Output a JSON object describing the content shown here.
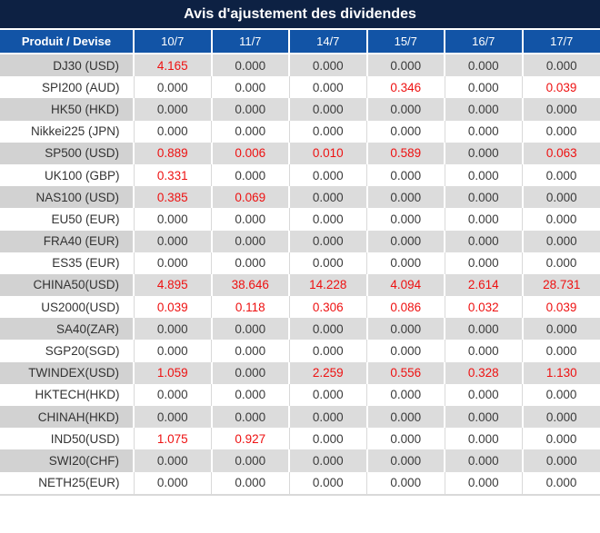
{
  "title": "Avis d'ajustement des dividendes",
  "table": {
    "product_header": "Produit / Devise",
    "date_headers": [
      "10/7",
      "11/7",
      "14/7",
      "15/7",
      "16/7",
      "17/7"
    ],
    "rows": [
      {
        "product": "DJ30 (USD)",
        "values": [
          "4.165",
          "0.000",
          "0.000",
          "0.000",
          "0.000",
          "0.000"
        ]
      },
      {
        "product": "SPI200 (AUD)",
        "values": [
          "0.000",
          "0.000",
          "0.000",
          "0.346",
          "0.000",
          "0.039"
        ]
      },
      {
        "product": "HK50 (HKD)",
        "values": [
          "0.000",
          "0.000",
          "0.000",
          "0.000",
          "0.000",
          "0.000"
        ]
      },
      {
        "product": "Nikkei225 (JPN)",
        "values": [
          "0.000",
          "0.000",
          "0.000",
          "0.000",
          "0.000",
          "0.000"
        ]
      },
      {
        "product": "SP500 (USD)",
        "values": [
          "0.889",
          "0.006",
          "0.010",
          "0.589",
          "0.000",
          "0.063"
        ]
      },
      {
        "product": "UK100 (GBP)",
        "values": [
          "0.331",
          "0.000",
          "0.000",
          "0.000",
          "0.000",
          "0.000"
        ]
      },
      {
        "product": "NAS100 (USD)",
        "values": [
          "0.385",
          "0.069",
          "0.000",
          "0.000",
          "0.000",
          "0.000"
        ]
      },
      {
        "product": "EU50 (EUR)",
        "values": [
          "0.000",
          "0.000",
          "0.000",
          "0.000",
          "0.000",
          "0.000"
        ]
      },
      {
        "product": "FRA40 (EUR)",
        "values": [
          "0.000",
          "0.000",
          "0.000",
          "0.000",
          "0.000",
          "0.000"
        ]
      },
      {
        "product": "ES35 (EUR)",
        "values": [
          "0.000",
          "0.000",
          "0.000",
          "0.000",
          "0.000",
          "0.000"
        ]
      },
      {
        "product": "CHINA50(USD)",
        "values": [
          "4.895",
          "38.646",
          "14.228",
          "4.094",
          "2.614",
          "28.731"
        ]
      },
      {
        "product": "US2000(USD)",
        "values": [
          "0.039",
          "0.118",
          "0.306",
          "0.086",
          "0.032",
          "0.039"
        ]
      },
      {
        "product": "SA40(ZAR)",
        "values": [
          "0.000",
          "0.000",
          "0.000",
          "0.000",
          "0.000",
          "0.000"
        ]
      },
      {
        "product": "SGP20(SGD)",
        "values": [
          "0.000",
          "0.000",
          "0.000",
          "0.000",
          "0.000",
          "0.000"
        ]
      },
      {
        "product": "TWINDEX(USD)",
        "values": [
          "1.059",
          "0.000",
          "2.259",
          "0.556",
          "0.328",
          "1.130"
        ]
      },
      {
        "product": "HKTECH(HKD)",
        "values": [
          "0.000",
          "0.000",
          "0.000",
          "0.000",
          "0.000",
          "0.000"
        ]
      },
      {
        "product": "CHINAH(HKD)",
        "values": [
          "0.000",
          "0.000",
          "0.000",
          "0.000",
          "0.000",
          "0.000"
        ]
      },
      {
        "product": "IND50(USD)",
        "values": [
          "1.075",
          "0.927",
          "0.000",
          "0.000",
          "0.000",
          "0.000"
        ]
      },
      {
        "product": "SWI20(CHF)",
        "values": [
          "0.000",
          "0.000",
          "0.000",
          "0.000",
          "0.000",
          "0.000"
        ]
      },
      {
        "product": "NETH25(EUR)",
        "values": [
          "0.000",
          "0.000",
          "0.000",
          "0.000",
          "0.000",
          "0.000"
        ]
      }
    ]
  },
  "colors": {
    "title_bg": "#0d2143",
    "header_bg": "#1254a6",
    "row_alt_bg": "#dcdcdc",
    "product_alt_bg": "#d2d2d2",
    "nonzero_value_color": "#ee1111",
    "zero_value_color": "#3b3b3b"
  }
}
